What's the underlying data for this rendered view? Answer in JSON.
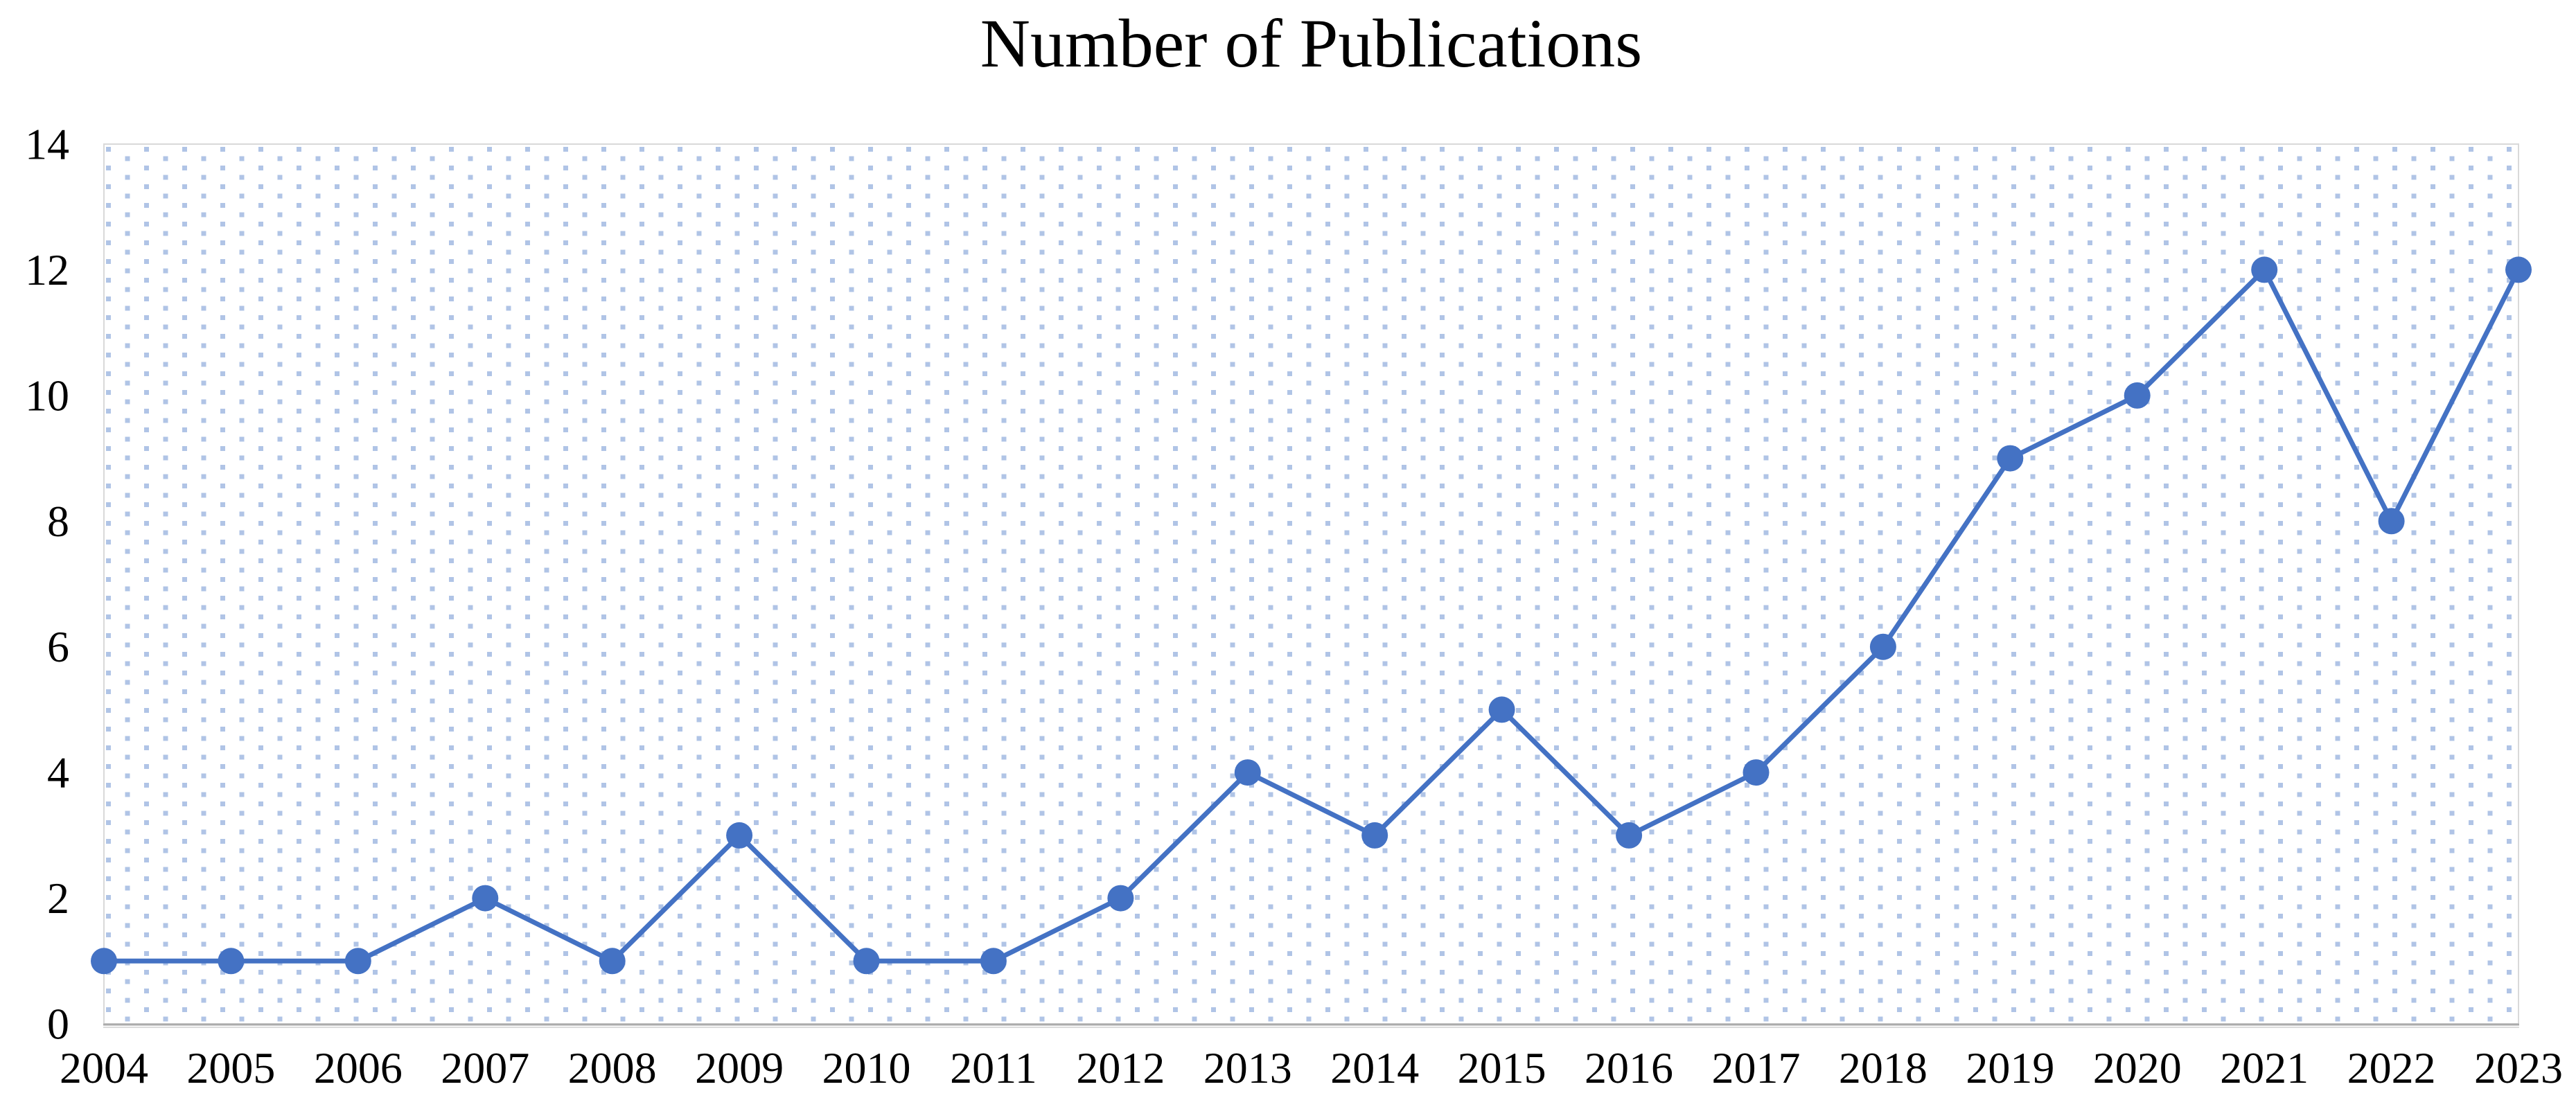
{
  "chart_data": {
    "type": "line",
    "title": "Number of Publications",
    "categories": [
      "2004",
      "2005",
      "2006",
      "2007",
      "2008",
      "2009",
      "2010",
      "2011",
      "2012",
      "2013",
      "2014",
      "2015",
      "2016",
      "2017",
      "2018",
      "2019",
      "2020",
      "2021",
      "2022",
      "2023"
    ],
    "series": [
      {
        "name": "Number of Publications",
        "values": [
          1,
          1,
          1,
          2,
          1,
          3,
          1,
          1,
          2,
          4,
          3,
          5,
          3,
          4,
          6,
          9,
          10,
          12,
          8,
          12
        ]
      }
    ],
    "xlabel": "",
    "ylabel": "",
    "ylim": [
      0,
      14
    ],
    "ytick_step": 2,
    "yticks": [
      0,
      2,
      4,
      6,
      8,
      10,
      12,
      14
    ],
    "grid": "off",
    "legend": "none",
    "marker_style": "filled-circle",
    "plot_area_fill": "dotted-square-pattern",
    "colors": {
      "line": "#4472C4",
      "marker": "#4472C4",
      "pattern_dot": "#B0C4E6",
      "plot_border": "#D9D9D9",
      "axis_line": "#ABABAB",
      "axis_line_shadow": "#DCDCDC",
      "text": "#000000",
      "background": "#FFFFFF"
    }
  }
}
